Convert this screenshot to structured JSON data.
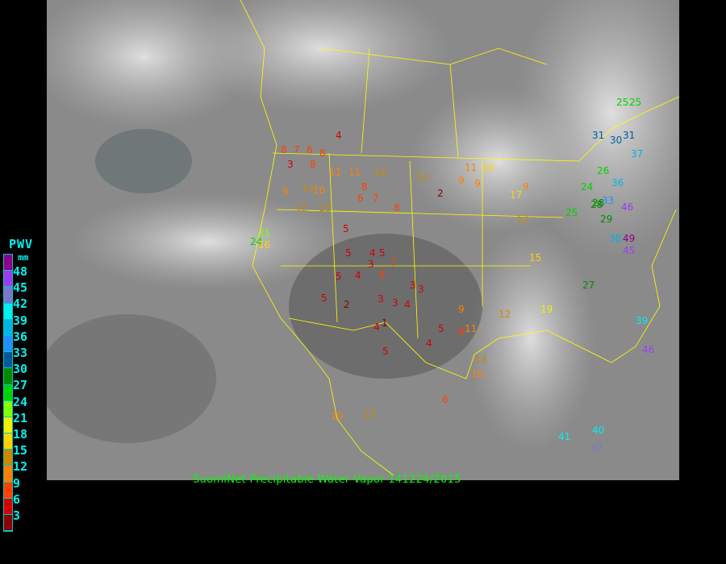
{
  "caption": "SuomiNet Precipitable Water Vapor 141224/2015",
  "legend": {
    "title": "PWV",
    "unit": "mm",
    "labels": [
      "48",
      "45",
      "42",
      "39",
      "36",
      "33",
      "30",
      "27",
      "24",
      "21",
      "18",
      "15",
      "12",
      "9",
      "6",
      "3"
    ],
    "colors": [
      "#8b008b",
      "#9b3cf0",
      "#7878d0",
      "#00f0f0",
      "#00b4e6",
      "#1e90ff",
      "#005a9a",
      "#008c00",
      "#00d200",
      "#80ff00",
      "#f0f000",
      "#ffd200",
      "#c88a00",
      "#ff8000",
      "#ff4000",
      "#d20000",
      "#8b0000"
    ]
  },
  "stations": [
    "4",
    "8",
    "7",
    "6",
    "8",
    "3",
    "8",
    "9",
    "11",
    "11",
    "12",
    "13",
    "2",
    "9",
    "9",
    "11",
    "16",
    "9",
    "12",
    "13",
    "10",
    "12",
    "5",
    "6",
    "7",
    "8",
    "8",
    "4",
    "5",
    "3",
    "5",
    "8",
    "4",
    "3",
    "7",
    "3",
    "3",
    "2",
    "5",
    "4",
    "1",
    "4",
    "5",
    "3",
    "4",
    "9",
    "8",
    "11",
    "13",
    "10",
    "15",
    "12",
    "19",
    "12",
    "17",
    "21",
    "24",
    "28",
    "26",
    "24",
    "25",
    "29",
    "28",
    "27",
    "31",
    "31",
    "30",
    "37",
    "25",
    "25",
    "33",
    "46",
    "49",
    "45",
    "38",
    "36",
    "46",
    "39",
    "41",
    "40",
    "42",
    "5",
    "5",
    "6",
    "13",
    "10",
    "16",
    "21",
    "28"
  ]
}
